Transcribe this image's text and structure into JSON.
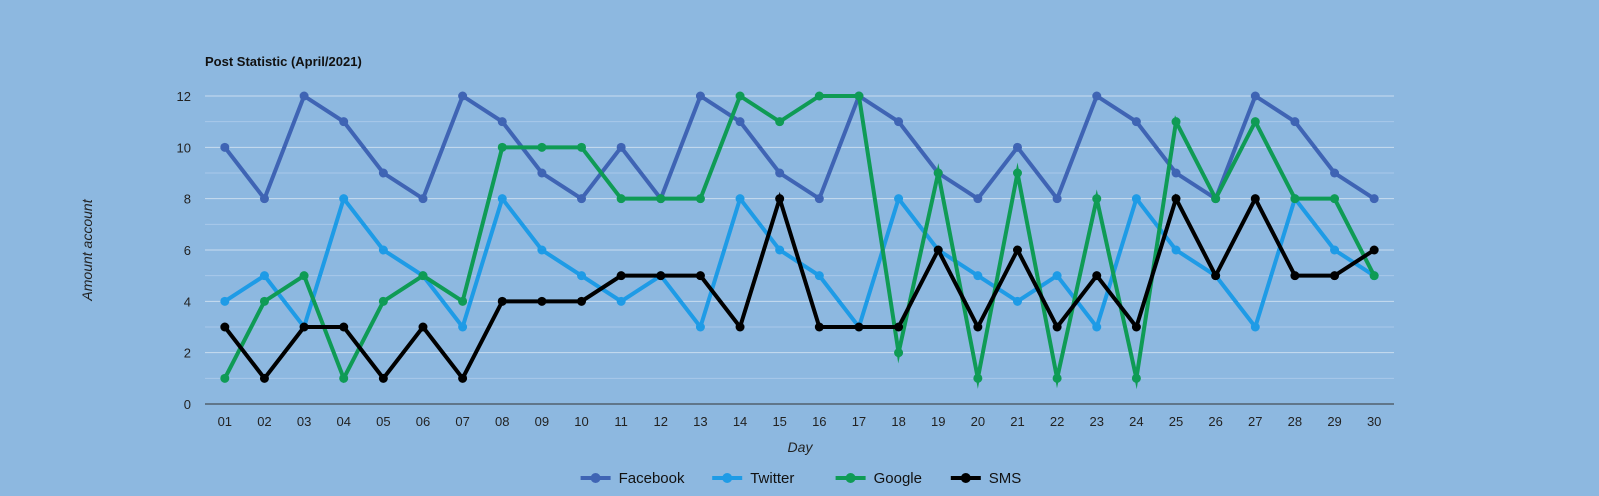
{
  "chart_data": {
    "type": "line",
    "title": "Post Statistic (April/2021)",
    "xlabel": "Day",
    "ylabel": "Amount account",
    "ylim": [
      0,
      12
    ],
    "yticks": [
      0,
      2,
      4,
      6,
      8,
      10,
      12
    ],
    "grid": true,
    "legend_position": "bottom",
    "categories": [
      "01",
      "02",
      "03",
      "04",
      "05",
      "06",
      "07",
      "08",
      "09",
      "10",
      "11",
      "12",
      "13",
      "14",
      "15",
      "16",
      "17",
      "18",
      "19",
      "20",
      "21",
      "22",
      "23",
      "24",
      "25",
      "26",
      "27",
      "28",
      "29",
      "30"
    ],
    "series": [
      {
        "name": "Facebook",
        "color": "#3f64b4",
        "values": [
          10,
          8,
          12,
          11,
          9,
          8,
          12,
          11,
          9,
          8,
          10,
          8,
          12,
          11,
          9,
          8,
          12,
          11,
          9,
          8,
          10,
          8,
          12,
          11,
          9,
          8,
          12,
          11,
          9,
          8
        ]
      },
      {
        "name": "Twitter",
        "color": "#1e9be6",
        "values": [
          4,
          5,
          3,
          8,
          6,
          5,
          3,
          8,
          6,
          5,
          4,
          5,
          3,
          8,
          6,
          5,
          3,
          8,
          6,
          5,
          4,
          5,
          3,
          8,
          6,
          5,
          3,
          8,
          6,
          5
        ]
      },
      {
        "name": "Google",
        "color": "#0f9b55",
        "values": [
          1,
          4,
          5,
          1,
          4,
          5,
          4,
          10,
          10,
          10,
          8,
          8,
          8,
          12,
          11,
          12,
          12,
          2,
          9,
          1,
          9,
          1,
          8,
          1,
          11,
          8,
          11,
          8,
          8,
          5
        ]
      },
      {
        "name": "SMS",
        "color": "#000000",
        "values": [
          3,
          1,
          3,
          3,
          1,
          3,
          1,
          4,
          4,
          4,
          5,
          5,
          5,
          3,
          8,
          3,
          3,
          3,
          6,
          3,
          6,
          3,
          5,
          3,
          8,
          5,
          8,
          5,
          5,
          6
        ]
      }
    ]
  }
}
